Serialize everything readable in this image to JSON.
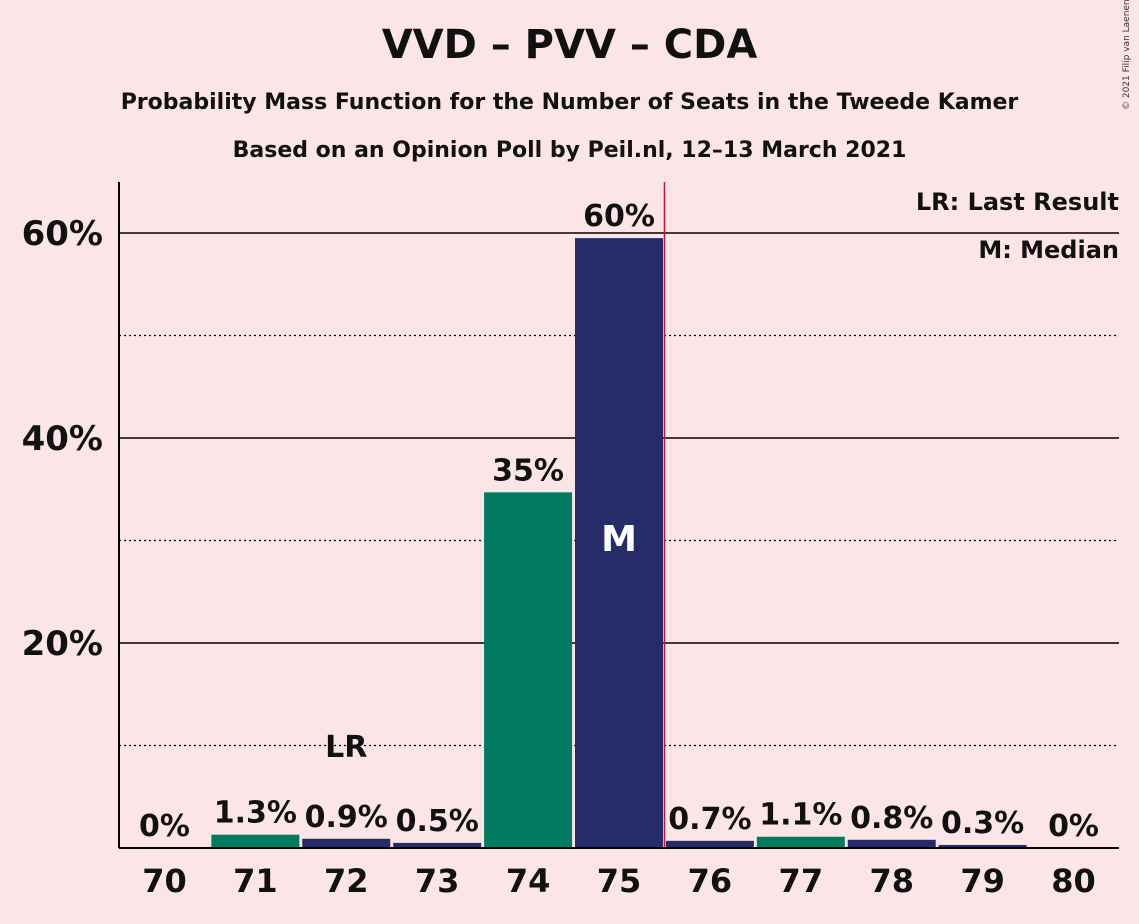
{
  "title": "VVD – PVV – CDA",
  "subtitle": "Probability Mass Function for the Number of Seats in the Tweede Kamer",
  "subtitle2": "Based on an Opinion Poll by Peil.nl, 12–13 March 2021",
  "copyright": "© 2021 Filip van Laenen",
  "legend": {
    "lr": "LR: Last Result",
    "m": "M: Median"
  },
  "colors": {
    "green": "#007b5f",
    "navy": "#252c67",
    "background": "#fce5e7",
    "majority_line": "#c0143c"
  },
  "chart_data": {
    "type": "bar",
    "categories": [
      "70",
      "71",
      "72",
      "73",
      "74",
      "75",
      "76",
      "77",
      "78",
      "79",
      "80"
    ],
    "values": [
      0,
      1.3,
      0.9,
      0.5,
      35,
      60,
      0.7,
      1.1,
      0.8,
      0.3,
      0
    ],
    "bar_heights": [
      0,
      1.3,
      0.9,
      0.5,
      34.7,
      59.5,
      0.7,
      1.1,
      0.8,
      0.3,
      0
    ],
    "labels": [
      "0%",
      "1.3%",
      "0.9%",
      "0.5%",
      "35%",
      "60%",
      "0.7%",
      "1.1%",
      "0.8%",
      "0.3%",
      "0%"
    ],
    "bar_colors": [
      "green",
      "green",
      "navy",
      "navy",
      "green",
      "navy",
      "navy",
      "green",
      "navy",
      "navy",
      "navy"
    ],
    "ytick_labels": [
      "20%",
      "40%",
      "60%"
    ],
    "yticks": [
      20,
      40,
      60
    ],
    "ylim": [
      0,
      65
    ],
    "last_result": "72",
    "last_result_label": "LR",
    "median": "75",
    "median_label": "M",
    "majority_after": "75",
    "grid": true,
    "legend_position": "top-right"
  }
}
